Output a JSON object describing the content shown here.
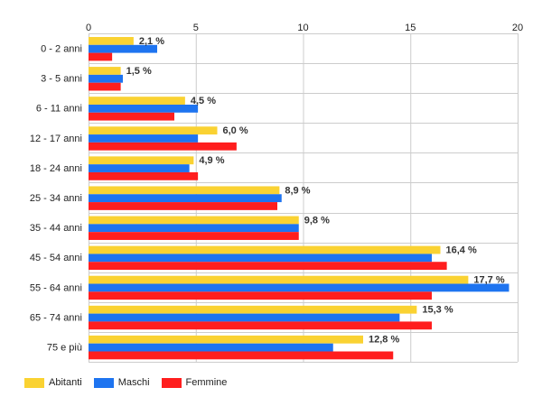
{
  "colors": {
    "grid": "#cccccc",
    "axis_text": "#222222",
    "label_text": "#333333",
    "background": "#ffffff"
  },
  "chart_data": {
    "type": "bar",
    "orientation": "horizontal",
    "xlim": [
      0,
      20
    ],
    "x_ticks": [
      "0",
      "5",
      "10",
      "15",
      "20"
    ],
    "x_tick_values": [
      0,
      5,
      10,
      15,
      20
    ],
    "grid": true,
    "legend_position": "bottom-left",
    "categories": [
      "0 - 2 anni",
      "3 - 5 anni",
      "6 - 11 anni",
      "12 - 17 anni",
      "18 - 24 anni",
      "25 - 34 anni",
      "35 - 44 anni",
      "45 - 54 anni",
      "55 - 64 anni",
      "65 - 74 anni",
      "75 e più"
    ],
    "series": [
      {
        "name": "Abitanti",
        "color": "#fad232",
        "values": [
          2.1,
          1.5,
          4.5,
          6.0,
          4.9,
          8.9,
          9.8,
          16.4,
          17.7,
          15.3,
          12.8
        ],
        "labels": [
          "2,1 %",
          "1,5 %",
          "4,5 %",
          "6,0 %",
          "4,9 %",
          "8,9 %",
          "9,8 %",
          "16,4 %",
          "17,7 %",
          "15,3 %",
          "12,8 %"
        ]
      },
      {
        "name": "Maschi",
        "color": "#1e74f0",
        "values": [
          3.2,
          1.6,
          5.1,
          5.1,
          4.7,
          9.0,
          9.8,
          16.0,
          19.6,
          14.5,
          11.4
        ]
      },
      {
        "name": "Femmine",
        "color": "#ff1e1e",
        "values": [
          1.1,
          1.5,
          4.0,
          6.9,
          5.1,
          8.8,
          9.8,
          16.7,
          16.0,
          16.0,
          14.2
        ]
      }
    ]
  }
}
